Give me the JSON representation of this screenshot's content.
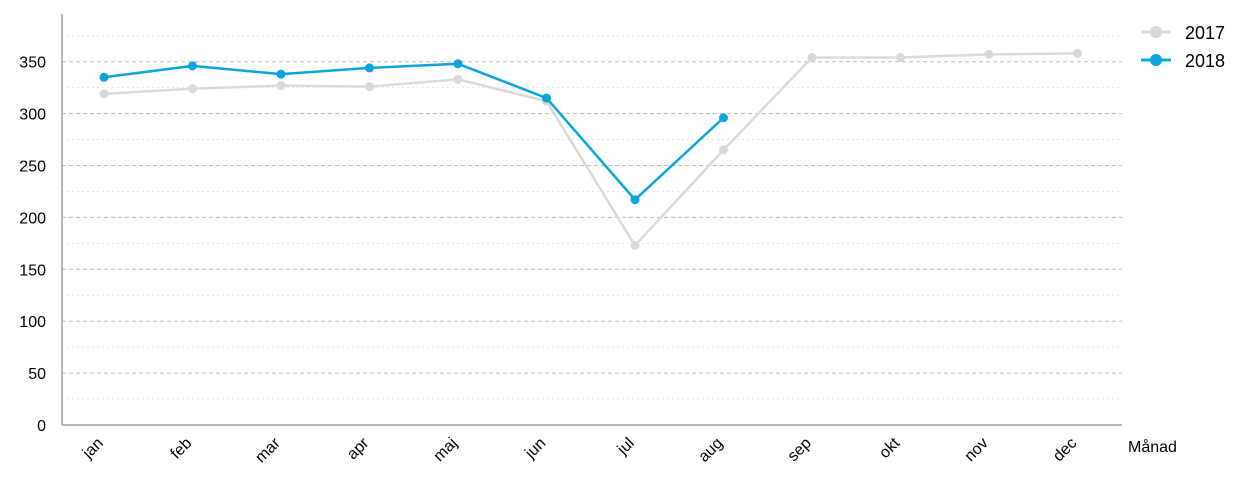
{
  "chart_data": {
    "type": "line",
    "title": "",
    "xlabel": "Månad",
    "ylabel": "",
    "categories": [
      "jan",
      "feb",
      "mar",
      "apr",
      "maj",
      "jun",
      "jul",
      "aug",
      "sep",
      "okt",
      "nov",
      "dec"
    ],
    "yticks": [
      "0",
      "50",
      "100",
      "150",
      "200",
      "250",
      "300",
      "350"
    ],
    "ylim": [
      0,
      385
    ],
    "grid": true,
    "legend_position": "top-right",
    "series": [
      {
        "name": "2017",
        "color": "#d9d9d9",
        "values": [
          319,
          324,
          327,
          326,
          333,
          312,
          173,
          265,
          354,
          354,
          357,
          358
        ]
      },
      {
        "name": "2018",
        "color": "#0aa5dc",
        "values": [
          335,
          346,
          338,
          344,
          348,
          315,
          217,
          296,
          null,
          null,
          null,
          null
        ]
      }
    ]
  }
}
